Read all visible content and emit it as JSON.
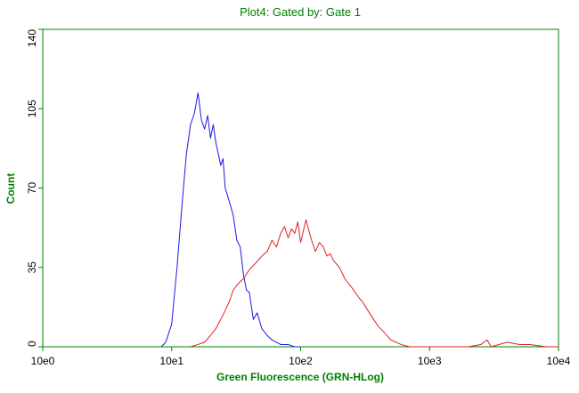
{
  "chart_data": {
    "type": "line",
    "title": "Plot4:  Gated by: Gate 1",
    "xlabel": "Green Fluorescence (GRN-HLog)",
    "ylabel": "Count",
    "x_scale": "log10",
    "xlim": [
      1,
      10000
    ],
    "ylim": [
      0,
      140
    ],
    "x_ticks": [
      1,
      10,
      100,
      1000,
      10000
    ],
    "x_tick_labels": [
      "10e0",
      "10e1",
      "10e2",
      "10e3",
      "10e4"
    ],
    "y_ticks": [
      0,
      35,
      70,
      105,
      140
    ],
    "y_tick_labels": [
      "0",
      "35",
      "70",
      "105",
      "140"
    ],
    "grid": false,
    "legend": "none",
    "series": [
      {
        "color": "#1a1ae6",
        "x": [
          8.3,
          9,
          10,
          11,
          12,
          13,
          14,
          15,
          16,
          17,
          18,
          19,
          20,
          21,
          22,
          23,
          24,
          25,
          26,
          28,
          30,
          32,
          34,
          36,
          38,
          40,
          43,
          46,
          50,
          55,
          60,
          65,
          70,
          80,
          90,
          100
        ],
        "y": [
          0,
          2,
          10,
          35,
          62,
          85,
          98,
          103,
          112,
          100,
          96,
          102,
          92,
          98,
          90,
          85,
          80,
          83,
          70,
          64,
          58,
          47,
          44,
          32,
          25,
          24,
          12,
          15,
          8,
          5,
          3,
          2,
          1,
          1,
          0,
          0
        ]
      },
      {
        "color": "#dd2020",
        "x": [
          14,
          16,
          18,
          20,
          22,
          25,
          28,
          30,
          33,
          36,
          40,
          45,
          50,
          55,
          60,
          65,
          70,
          75,
          80,
          85,
          90,
          95,
          100,
          110,
          120,
          130,
          140,
          150,
          160,
          170,
          180,
          200,
          220,
          250,
          280,
          300,
          350,
          400,
          450,
          500,
          550,
          600,
          700,
          800,
          1000,
          1500,
          2000,
          2500,
          2800,
          3000,
          4000,
          5000,
          6000,
          8000,
          10000
        ],
        "y": [
          0,
          1,
          2,
          5,
          8,
          14,
          20,
          25,
          28,
          30,
          34,
          37,
          40,
          42,
          47,
          44,
          50,
          53,
          48,
          52,
          50,
          55,
          46,
          56,
          48,
          42,
          46,
          44,
          40,
          41,
          38,
          35,
          30,
          26,
          22,
          20,
          14,
          9,
          6,
          3,
          2,
          1,
          0,
          0,
          0,
          0,
          0,
          1,
          3,
          0,
          2,
          1,
          1,
          0,
          0
        ]
      }
    ]
  },
  "style": {
    "axis_color": "#008000",
    "title_color": "#008000",
    "background": "#ffffff"
  }
}
